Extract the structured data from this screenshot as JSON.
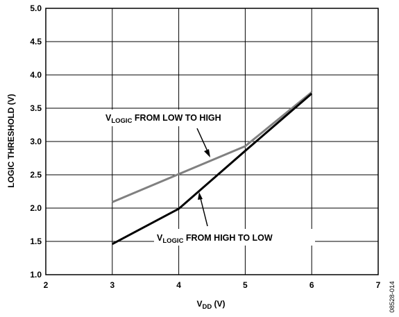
{
  "chart_data": {
    "type": "line",
    "title": "",
    "xlabel": {
      "main": "V",
      "sub": "DD",
      "unit": " (V)"
    },
    "ylabel": "LOGIC THRESHOLD (V)",
    "xlim": [
      2,
      7
    ],
    "ylim": [
      1.0,
      5.0
    ],
    "x_ticks": [
      "2",
      "3",
      "4",
      "5",
      "6",
      "7"
    ],
    "y_ticks": [
      "1.0",
      "1.5",
      "2.0",
      "2.5",
      "3.0",
      "3.5",
      "4.0",
      "4.5",
      "5.0"
    ],
    "grid": true,
    "series": [
      {
        "color": "#808080",
        "x": [
          3,
          4,
          5,
          6
        ],
        "y": [
          2.09,
          2.51,
          2.93,
          3.74
        ]
      },
      {
        "color": "#000000",
        "x": [
          3,
          4,
          5,
          6
        ],
        "y": [
          1.46,
          1.99,
          2.86,
          3.72
        ]
      }
    ],
    "annotations": [
      {
        "main": "V",
        "sub": "LOGIC",
        "rest": " FROM LOW TO HIGH"
      },
      {
        "main": "V",
        "sub": "LOGIC",
        "rest": " FROM HIGH TO LOW"
      }
    ],
    "figure_id": "08528-014"
  }
}
